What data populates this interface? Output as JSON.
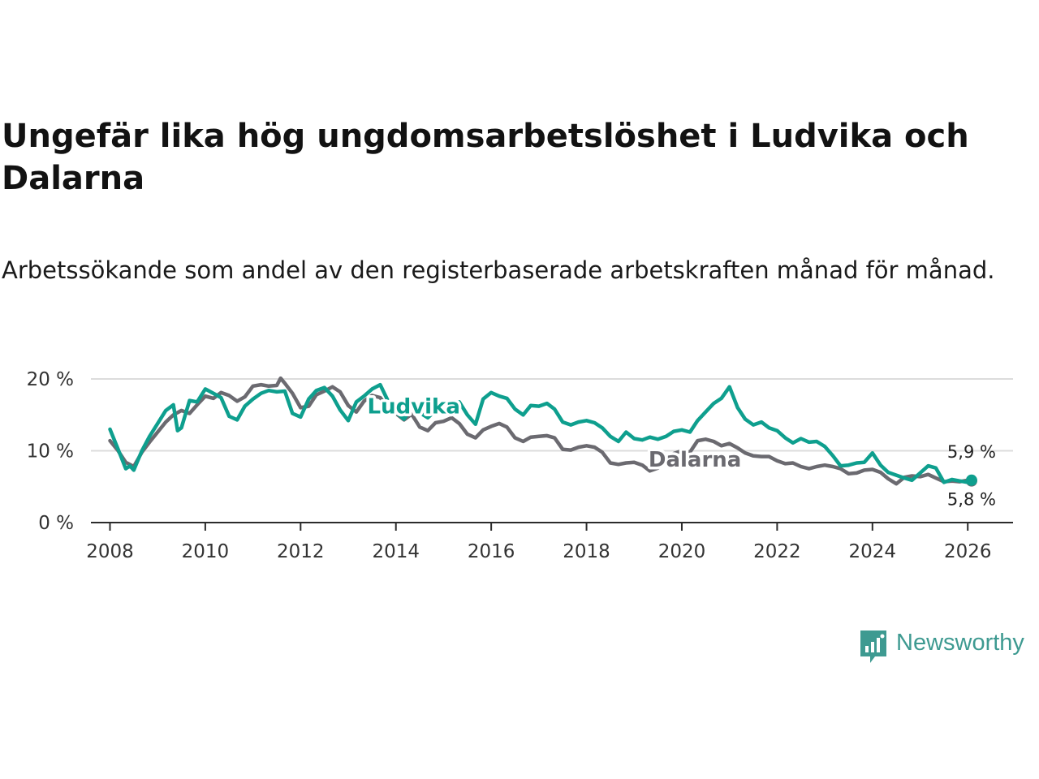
{
  "header": {
    "title": "Ungefär lika hög ungdomsarbetslöshet i Ludvika och Dalarna",
    "subtitle": "Arbetssökande som andel av den registerbaserade arbetskraften månad för månad."
  },
  "brand": {
    "name": "Newsworthy",
    "icon": "newsworthy-logo-icon",
    "color": "#3e9a91"
  },
  "chart_data": {
    "type": "line",
    "title": "Ungefär lika hög ungdomsarbetslöshet i Ludvika och Dalarna",
    "subtitle": "Arbetssökande som andel av den registerbaserade arbetskraften månad för månad.",
    "xlabel": "",
    "ylabel": "",
    "xlim": [
      2007.6,
      2026.95
    ],
    "ylim": [
      0,
      20
    ],
    "x_ticks": [
      2008,
      2010,
      2012,
      2014,
      2016,
      2018,
      2020,
      2022,
      2024,
      2026
    ],
    "y_ticks": [
      0,
      10,
      20
    ],
    "y_tick_labels": [
      "0 %",
      "10 %",
      "20 %"
    ],
    "grid": "horizontal",
    "legend": "inline labels",
    "series": [
      {
        "name": "Dalarna",
        "label": "Dalarna",
        "color": "#6b6a70",
        "end_label": "5,8 %",
        "points": [
          [
            2008.0,
            11.4
          ],
          [
            2008.17,
            10.0
          ],
          [
            2008.33,
            8.4
          ],
          [
            2008.5,
            7.8
          ],
          [
            2008.67,
            9.8
          ],
          [
            2008.83,
            11.2
          ],
          [
            2009.0,
            12.6
          ],
          [
            2009.17,
            14.0
          ],
          [
            2009.33,
            15.0
          ],
          [
            2009.5,
            15.6
          ],
          [
            2009.67,
            15.2
          ],
          [
            2009.83,
            16.4
          ],
          [
            2010.0,
            17.6
          ],
          [
            2010.17,
            17.3
          ],
          [
            2010.33,
            18.1
          ],
          [
            2010.5,
            17.7
          ],
          [
            2010.67,
            16.9
          ],
          [
            2010.83,
            17.5
          ],
          [
            2011.0,
            19.0
          ],
          [
            2011.17,
            19.2
          ],
          [
            2011.33,
            19.0
          ],
          [
            2011.5,
            19.1
          ],
          [
            2011.58,
            20.1
          ],
          [
            2011.67,
            19.4
          ],
          [
            2011.83,
            18.0
          ],
          [
            2012.0,
            16.0
          ],
          [
            2012.17,
            16.2
          ],
          [
            2012.33,
            17.8
          ],
          [
            2012.5,
            18.3
          ],
          [
            2012.67,
            18.9
          ],
          [
            2012.83,
            18.2
          ],
          [
            2013.0,
            16.3
          ],
          [
            2013.17,
            15.4
          ],
          [
            2013.33,
            16.9
          ],
          [
            2013.5,
            17.7
          ],
          [
            2013.67,
            17.4
          ],
          [
            2013.83,
            16.0
          ],
          [
            2014.0,
            15.2
          ],
          [
            2014.17,
            14.3
          ],
          [
            2014.33,
            15.1
          ],
          [
            2014.5,
            13.3
          ],
          [
            2014.67,
            12.8
          ],
          [
            2014.83,
            13.9
          ],
          [
            2015.0,
            14.1
          ],
          [
            2015.17,
            14.6
          ],
          [
            2015.33,
            13.8
          ],
          [
            2015.5,
            12.3
          ],
          [
            2015.67,
            11.8
          ],
          [
            2015.83,
            12.9
          ],
          [
            2016.0,
            13.4
          ],
          [
            2016.17,
            13.8
          ],
          [
            2016.33,
            13.3
          ],
          [
            2016.5,
            11.8
          ],
          [
            2016.67,
            11.3
          ],
          [
            2016.83,
            11.9
          ],
          [
            2017.0,
            12.0
          ],
          [
            2017.17,
            12.1
          ],
          [
            2017.33,
            11.8
          ],
          [
            2017.5,
            10.2
          ],
          [
            2017.67,
            10.1
          ],
          [
            2017.83,
            10.5
          ],
          [
            2018.0,
            10.7
          ],
          [
            2018.17,
            10.5
          ],
          [
            2018.33,
            9.8
          ],
          [
            2018.5,
            8.3
          ],
          [
            2018.67,
            8.1
          ],
          [
            2018.83,
            8.3
          ],
          [
            2019.0,
            8.4
          ],
          [
            2019.17,
            8.0
          ],
          [
            2019.33,
            7.2
          ],
          [
            2019.5,
            7.6
          ],
          [
            2019.67,
            8.9
          ],
          [
            2019.83,
            9.6
          ],
          [
            2020.0,
            10.0
          ],
          [
            2020.17,
            9.8
          ],
          [
            2020.33,
            11.4
          ],
          [
            2020.5,
            11.6
          ],
          [
            2020.67,
            11.3
          ],
          [
            2020.83,
            10.7
          ],
          [
            2021.0,
            11.0
          ],
          [
            2021.17,
            10.4
          ],
          [
            2021.33,
            9.7
          ],
          [
            2021.5,
            9.3
          ],
          [
            2021.67,
            9.2
          ],
          [
            2021.83,
            9.2
          ],
          [
            2022.0,
            8.6
          ],
          [
            2022.17,
            8.2
          ],
          [
            2022.33,
            8.3
          ],
          [
            2022.5,
            7.8
          ],
          [
            2022.67,
            7.5
          ],
          [
            2022.83,
            7.8
          ],
          [
            2023.0,
            8.0
          ],
          [
            2023.17,
            7.8
          ],
          [
            2023.33,
            7.5
          ],
          [
            2023.5,
            6.8
          ],
          [
            2023.67,
            6.9
          ],
          [
            2023.83,
            7.3
          ],
          [
            2024.0,
            7.4
          ],
          [
            2024.17,
            7.0
          ],
          [
            2024.33,
            6.1
          ],
          [
            2024.5,
            5.4
          ],
          [
            2024.67,
            6.3
          ],
          [
            2024.83,
            6.5
          ],
          [
            2025.0,
            6.4
          ],
          [
            2025.17,
            6.7
          ],
          [
            2025.33,
            6.2
          ],
          [
            2025.5,
            5.7
          ],
          [
            2025.67,
            5.8
          ],
          [
            2025.83,
            5.7
          ],
          [
            2026.0,
            5.9
          ],
          [
            2026.08,
            5.8
          ]
        ]
      },
      {
        "name": "Ludvika",
        "label": "Ludvika",
        "color": "#0e9f8e",
        "end_label": "5,9 %",
        "points": [
          [
            2008.0,
            13.0
          ],
          [
            2008.17,
            10.2
          ],
          [
            2008.33,
            7.5
          ],
          [
            2008.42,
            7.9
          ],
          [
            2008.5,
            7.3
          ],
          [
            2008.67,
            10.0
          ],
          [
            2008.83,
            12.0
          ],
          [
            2009.0,
            13.8
          ],
          [
            2009.17,
            15.6
          ],
          [
            2009.33,
            16.4
          ],
          [
            2009.42,
            12.8
          ],
          [
            2009.5,
            13.2
          ],
          [
            2009.67,
            17.0
          ],
          [
            2009.83,
            16.8
          ],
          [
            2010.0,
            18.6
          ],
          [
            2010.17,
            18.0
          ],
          [
            2010.33,
            17.4
          ],
          [
            2010.5,
            14.8
          ],
          [
            2010.67,
            14.3
          ],
          [
            2010.83,
            16.2
          ],
          [
            2011.0,
            17.2
          ],
          [
            2011.17,
            18.0
          ],
          [
            2011.33,
            18.4
          ],
          [
            2011.5,
            18.2
          ],
          [
            2011.67,
            18.3
          ],
          [
            2011.83,
            15.2
          ],
          [
            2012.0,
            14.7
          ],
          [
            2012.17,
            17.2
          ],
          [
            2012.33,
            18.4
          ],
          [
            2012.5,
            18.8
          ],
          [
            2012.67,
            17.6
          ],
          [
            2012.83,
            15.7
          ],
          [
            2013.0,
            14.2
          ],
          [
            2013.17,
            16.8
          ],
          [
            2013.33,
            17.6
          ],
          [
            2013.5,
            18.6
          ],
          [
            2013.67,
            19.2
          ],
          [
            2013.83,
            17.0
          ],
          [
            2014.0,
            15.4
          ],
          [
            2014.17,
            14.4
          ],
          [
            2014.33,
            16.1
          ],
          [
            2014.5,
            15.3
          ],
          [
            2014.67,
            14.6
          ],
          [
            2014.83,
            15.6
          ],
          [
            2015.0,
            15.1
          ],
          [
            2015.17,
            16.4
          ],
          [
            2015.33,
            16.8
          ],
          [
            2015.5,
            15.0
          ],
          [
            2015.67,
            13.7
          ],
          [
            2015.83,
            17.2
          ],
          [
            2016.0,
            18.1
          ],
          [
            2016.17,
            17.6
          ],
          [
            2016.33,
            17.3
          ],
          [
            2016.5,
            15.8
          ],
          [
            2016.67,
            15.0
          ],
          [
            2016.83,
            16.3
          ],
          [
            2017.0,
            16.2
          ],
          [
            2017.17,
            16.6
          ],
          [
            2017.33,
            15.8
          ],
          [
            2017.5,
            14.0
          ],
          [
            2017.67,
            13.6
          ],
          [
            2017.83,
            14.0
          ],
          [
            2018.0,
            14.2
          ],
          [
            2018.17,
            13.9
          ],
          [
            2018.33,
            13.2
          ],
          [
            2018.5,
            12.0
          ],
          [
            2018.67,
            11.3
          ],
          [
            2018.83,
            12.6
          ],
          [
            2019.0,
            11.7
          ],
          [
            2019.17,
            11.5
          ],
          [
            2019.33,
            11.9
          ],
          [
            2019.5,
            11.6
          ],
          [
            2019.67,
            12.0
          ],
          [
            2019.83,
            12.7
          ],
          [
            2020.0,
            12.9
          ],
          [
            2020.17,
            12.6
          ],
          [
            2020.33,
            14.2
          ],
          [
            2020.5,
            15.4
          ],
          [
            2020.67,
            16.6
          ],
          [
            2020.83,
            17.3
          ],
          [
            2021.0,
            18.9
          ],
          [
            2021.17,
            16.0
          ],
          [
            2021.33,
            14.4
          ],
          [
            2021.5,
            13.6
          ],
          [
            2021.67,
            14.0
          ],
          [
            2021.83,
            13.2
          ],
          [
            2022.0,
            12.8
          ],
          [
            2022.17,
            11.8
          ],
          [
            2022.33,
            11.1
          ],
          [
            2022.5,
            11.7
          ],
          [
            2022.67,
            11.2
          ],
          [
            2022.83,
            11.3
          ],
          [
            2023.0,
            10.6
          ],
          [
            2023.17,
            9.3
          ],
          [
            2023.33,
            7.9
          ],
          [
            2023.5,
            8.0
          ],
          [
            2023.67,
            8.3
          ],
          [
            2023.83,
            8.4
          ],
          [
            2024.0,
            9.7
          ],
          [
            2024.17,
            8.0
          ],
          [
            2024.33,
            7.0
          ],
          [
            2024.5,
            6.6
          ],
          [
            2024.67,
            6.2
          ],
          [
            2024.83,
            5.9
          ],
          [
            2025.0,
            6.9
          ],
          [
            2025.17,
            7.9
          ],
          [
            2025.33,
            7.6
          ],
          [
            2025.5,
            5.6
          ],
          [
            2025.67,
            6.0
          ],
          [
            2025.83,
            5.8
          ],
          [
            2026.0,
            5.6
          ],
          [
            2026.08,
            5.9
          ]
        ]
      }
    ]
  }
}
